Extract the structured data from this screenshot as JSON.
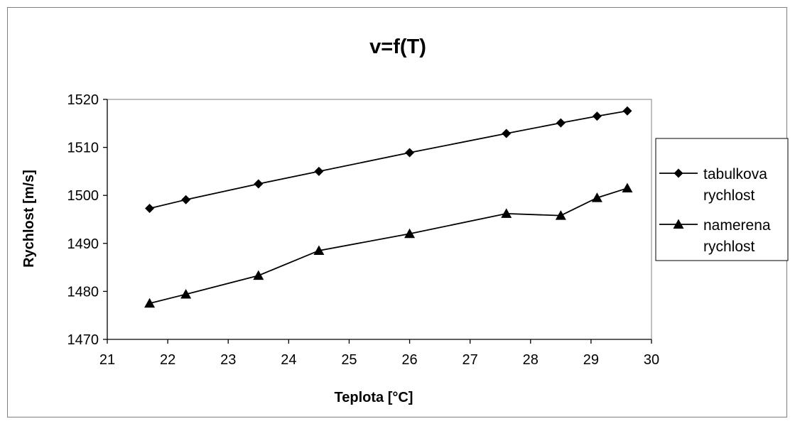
{
  "chart_data": {
    "type": "line",
    "title": "v=f(T)",
    "xlabel": "Teplota [°C]",
    "ylabel": "Rychlost [m/s]",
    "xlim": [
      21,
      30
    ],
    "ylim": [
      1470,
      1520
    ],
    "xticks": [
      "21",
      "22",
      "23",
      "24",
      "25",
      "26",
      "27",
      "28",
      "29",
      "30"
    ],
    "yticks": [
      "1470",
      "1480",
      "1490",
      "1500",
      "1510",
      "1520"
    ],
    "grid": false,
    "legend_position": "right",
    "series": [
      {
        "name_lines": [
          "tabulkova",
          "rychlost"
        ],
        "marker": "diamond",
        "color": "#000000",
        "x": [
          21.7,
          22.3,
          23.5,
          24.5,
          26.0,
          27.6,
          28.5,
          29.1,
          29.6
        ],
        "y": [
          1497.3,
          1499.1,
          1502.4,
          1505.0,
          1508.9,
          1512.9,
          1515.1,
          1516.5,
          1517.6
        ]
      },
      {
        "name_lines": [
          "namerena",
          "rychlost"
        ],
        "marker": "triangle",
        "color": "#000000",
        "x": [
          21.7,
          22.3,
          23.5,
          24.5,
          26.0,
          27.6,
          28.5,
          29.1,
          29.6
        ],
        "y": [
          1477.5,
          1479.4,
          1483.3,
          1488.5,
          1492.0,
          1496.2,
          1495.8,
          1499.5,
          1501.5
        ]
      }
    ]
  }
}
